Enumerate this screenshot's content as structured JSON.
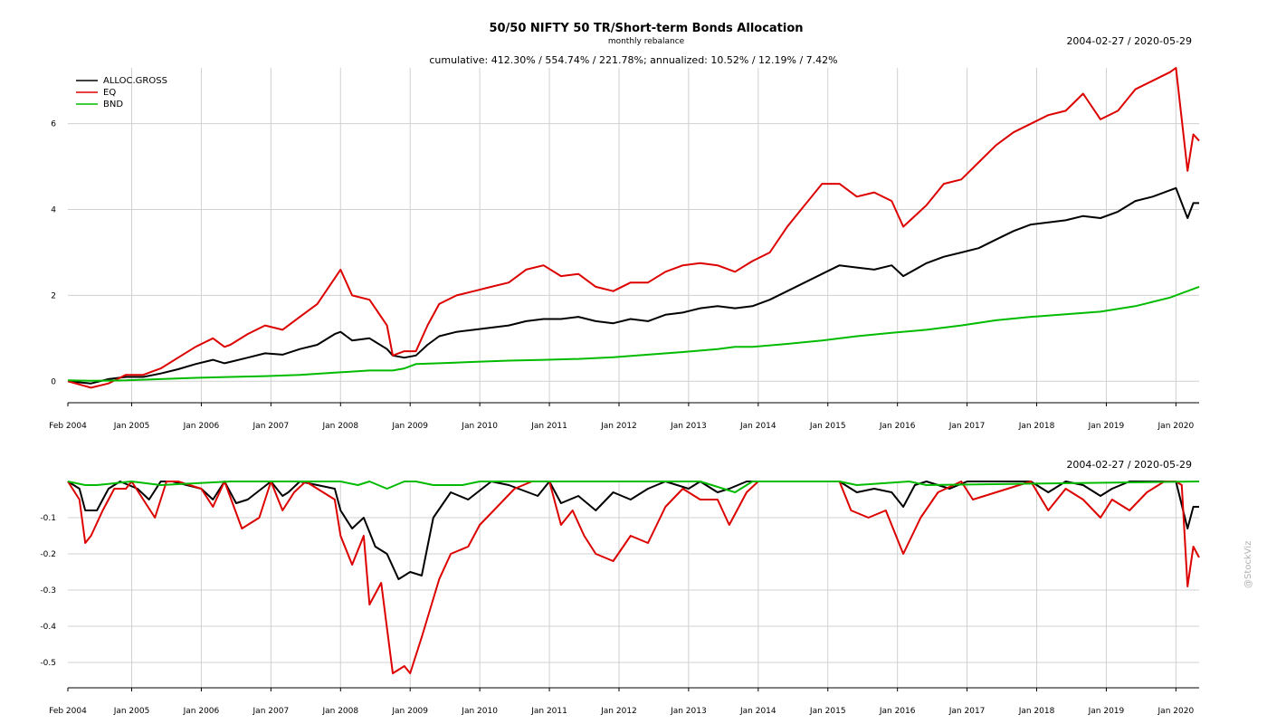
{
  "chart_data": [
    {
      "type": "line",
      "title": "50/50 NIFTY 50 TR/Short-term Bonds Allocation",
      "subtitle": "monthly rebalance",
      "stats_text": "cumulative: 412.30% / 554.74% / 221.78%; annualized: 10.52% / 12.19% / 7.42%",
      "date_range": "2004-02-27 / 2020-05-29",
      "x_tick_labels": [
        "Feb 2004",
        "Jan 2005",
        "Jan 2006",
        "Jan 2007",
        "Jan 2008",
        "Jan 2009",
        "Jan 2010",
        "Jan 2011",
        "Jan 2012",
        "Jan 2013",
        "Jan 2014",
        "Jan 2015",
        "Jan 2016",
        "Jan 2017",
        "Jan 2018",
        "Jan 2019",
        "Jan 2020"
      ],
      "y_tick_labels": [
        "0",
        "2",
        "4",
        "6"
      ],
      "ylim": [
        -0.5,
        7.3
      ],
      "grid": true,
      "legend_position": "top-left",
      "series": [
        {
          "name": "ALLOC.GROSS",
          "color": "#000000",
          "x": [
            "2004-02",
            "2004-06",
            "2004-09",
            "2004-12",
            "2005-03",
            "2005-06",
            "2005-09",
            "2005-12",
            "2006-03",
            "2006-05",
            "2006-06",
            "2006-09",
            "2006-12",
            "2007-03",
            "2007-06",
            "2007-09",
            "2007-12",
            "2008-01",
            "2008-03",
            "2008-06",
            "2008-09",
            "2008-10",
            "2008-12",
            "2009-02",
            "2009-04",
            "2009-06",
            "2009-09",
            "2009-12",
            "2010-03",
            "2010-06",
            "2010-09",
            "2010-12",
            "2011-03",
            "2011-06",
            "2011-09",
            "2011-12",
            "2012-03",
            "2012-06",
            "2012-09",
            "2012-12",
            "2013-03",
            "2013-06",
            "2013-09",
            "2013-12",
            "2014-03",
            "2014-06",
            "2014-09",
            "2014-12",
            "2015-03",
            "2015-06",
            "2015-09",
            "2015-12",
            "2016-02",
            "2016-06",
            "2016-09",
            "2016-12",
            "2017-03",
            "2017-06",
            "2017-09",
            "2017-12",
            "2018-03",
            "2018-06",
            "2018-09",
            "2018-12",
            "2019-03",
            "2019-06",
            "2019-09",
            "2019-12",
            "2020-01",
            "2020-03",
            "2020-04",
            "2020-05"
          ],
          "values": [
            0.0,
            -0.05,
            0.05,
            0.1,
            0.1,
            0.18,
            0.28,
            0.4,
            0.5,
            0.42,
            0.45,
            0.55,
            0.65,
            0.62,
            0.75,
            0.85,
            1.1,
            1.15,
            0.95,
            1.0,
            0.75,
            0.6,
            0.55,
            0.6,
            0.85,
            1.05,
            1.15,
            1.2,
            1.25,
            1.3,
            1.4,
            1.45,
            1.45,
            1.5,
            1.4,
            1.35,
            1.45,
            1.4,
            1.55,
            1.6,
            1.7,
            1.75,
            1.7,
            1.75,
            1.9,
            2.1,
            2.3,
            2.5,
            2.7,
            2.65,
            2.6,
            2.7,
            2.45,
            2.75,
            2.9,
            3.0,
            3.1,
            3.3,
            3.5,
            3.65,
            3.7,
            3.75,
            3.85,
            3.8,
            3.95,
            4.2,
            4.3,
            4.45,
            4.5,
            3.8,
            4.15,
            4.15
          ]
        },
        {
          "name": "EQ",
          "color": "#dd0000",
          "x": [
            "2004-02",
            "2004-06",
            "2004-09",
            "2004-12",
            "2005-03",
            "2005-06",
            "2005-09",
            "2005-12",
            "2006-03",
            "2006-05",
            "2006-06",
            "2006-09",
            "2006-12",
            "2007-03",
            "2007-06",
            "2007-09",
            "2007-12",
            "2008-01",
            "2008-03",
            "2008-06",
            "2008-09",
            "2008-10",
            "2008-12",
            "2009-02",
            "2009-04",
            "2009-06",
            "2009-09",
            "2009-12",
            "2010-03",
            "2010-06",
            "2010-09",
            "2010-12",
            "2011-03",
            "2011-06",
            "2011-09",
            "2011-12",
            "2012-03",
            "2012-06",
            "2012-09",
            "2012-12",
            "2013-03",
            "2013-06",
            "2013-09",
            "2013-12",
            "2014-03",
            "2014-06",
            "2014-09",
            "2014-12",
            "2015-03",
            "2015-06",
            "2015-09",
            "2015-12",
            "2016-02",
            "2016-06",
            "2016-09",
            "2016-12",
            "2017-03",
            "2017-06",
            "2017-09",
            "2017-12",
            "2018-03",
            "2018-06",
            "2018-09",
            "2018-12",
            "2019-03",
            "2019-06",
            "2019-09",
            "2019-12",
            "2020-01",
            "2020-03",
            "2020-04",
            "2020-05"
          ],
          "values": [
            0.0,
            -0.15,
            -0.05,
            0.15,
            0.15,
            0.3,
            0.55,
            0.8,
            1.0,
            0.8,
            0.85,
            1.1,
            1.3,
            1.2,
            1.5,
            1.8,
            2.4,
            2.6,
            2.0,
            1.9,
            1.3,
            0.6,
            0.7,
            0.7,
            1.3,
            1.8,
            2.0,
            2.1,
            2.2,
            2.3,
            2.6,
            2.7,
            2.45,
            2.5,
            2.2,
            2.1,
            2.3,
            2.3,
            2.55,
            2.7,
            2.75,
            2.7,
            2.55,
            2.8,
            3.0,
            3.6,
            4.1,
            4.6,
            4.6,
            4.3,
            4.4,
            4.2,
            3.6,
            4.1,
            4.6,
            4.7,
            5.1,
            5.5,
            5.8,
            6.0,
            6.2,
            6.3,
            6.7,
            6.1,
            6.3,
            6.8,
            7.0,
            7.2,
            7.3,
            4.9,
            5.75,
            5.6
          ]
        },
        {
          "name": "BND",
          "color": "#00bb00",
          "x": [
            "2004-02",
            "2004-06",
            "2004-12",
            "2005-06",
            "2005-12",
            "2006-06",
            "2006-12",
            "2007-06",
            "2007-12",
            "2008-06",
            "2008-10",
            "2008-12",
            "2009-02",
            "2009-06",
            "2009-12",
            "2010-06",
            "2010-12",
            "2011-06",
            "2011-12",
            "2012-06",
            "2012-12",
            "2013-06",
            "2013-09",
            "2013-12",
            "2014-06",
            "2014-12",
            "2015-06",
            "2015-12",
            "2016-06",
            "2016-12",
            "2017-06",
            "2017-12",
            "2018-06",
            "2018-12",
            "2019-06",
            "2019-12",
            "2020-02",
            "2020-05"
          ],
          "values": [
            0.02,
            0.01,
            0.02,
            0.05,
            0.08,
            0.1,
            0.12,
            0.15,
            0.2,
            0.25,
            0.25,
            0.3,
            0.4,
            0.42,
            0.45,
            0.48,
            0.5,
            0.52,
            0.56,
            0.62,
            0.68,
            0.75,
            0.8,
            0.8,
            0.87,
            0.95,
            1.05,
            1.13,
            1.2,
            1.3,
            1.42,
            1.5,
            1.56,
            1.62,
            1.75,
            1.95,
            2.05,
            2.2
          ]
        }
      ]
    },
    {
      "type": "line",
      "date_range": "2004-02-27 / 2020-05-29",
      "x_tick_labels": [
        "Feb 2004",
        "Jan 2005",
        "Jan 2006",
        "Jan 2007",
        "Jan 2008",
        "Jan 2009",
        "Jan 2010",
        "Jan 2011",
        "Jan 2012",
        "Jan 2013",
        "Jan 2014",
        "Jan 2015",
        "Jan 2016",
        "Jan 2017",
        "Jan 2018",
        "Jan 2019",
        "Jan 2020"
      ],
      "y_tick_labels": [
        "-0.1",
        "-0.2",
        "-0.3",
        "-0.4",
        "-0.5"
      ],
      "ylim": [
        -0.57,
        0.0
      ],
      "grid": true,
      "series": [
        {
          "name": "ALLOC.GROSS",
          "color": "#000000",
          "x": [
            "2004-02",
            "2004-04",
            "2004-05",
            "2004-07",
            "2004-09",
            "2004-11",
            "2005-02",
            "2005-04",
            "2005-06",
            "2005-08",
            "2006-01",
            "2006-03",
            "2006-05",
            "2006-07",
            "2006-09",
            "2007-01",
            "2007-03",
            "2007-04",
            "2007-06",
            "2007-12",
            "2008-01",
            "2008-03",
            "2008-05",
            "2008-07",
            "2008-09",
            "2008-11",
            "2009-01",
            "2009-03",
            "2009-05",
            "2009-08",
            "2009-11",
            "2010-03",
            "2010-06",
            "2010-11",
            "2011-01",
            "2011-03",
            "2011-06",
            "2011-09",
            "2011-12",
            "2012-03",
            "2012-06",
            "2012-09",
            "2013-01",
            "2013-03",
            "2013-06",
            "2013-08",
            "2013-11",
            "2014-01",
            "2015-03",
            "2015-06",
            "2015-09",
            "2015-12",
            "2016-02",
            "2016-04",
            "2016-06",
            "2016-10",
            "2017-01",
            "2017-12",
            "2018-03",
            "2018-06",
            "2018-09",
            "2018-12",
            "2019-02",
            "2019-05",
            "2019-09",
            "2019-11",
            "2020-01",
            "2020-03",
            "2020-04",
            "2020-05"
          ],
          "values": [
            0.0,
            -0.02,
            -0.08,
            -0.08,
            -0.02,
            0.0,
            -0.02,
            -0.05,
            0.0,
            0.0,
            -0.02,
            -0.05,
            0.0,
            -0.06,
            -0.05,
            0.0,
            -0.04,
            -0.03,
            0.0,
            -0.02,
            -0.08,
            -0.13,
            -0.1,
            -0.18,
            -0.2,
            -0.27,
            -0.25,
            -0.26,
            -0.1,
            -0.03,
            -0.05,
            0.0,
            -0.01,
            -0.04,
            0.0,
            -0.06,
            -0.04,
            -0.08,
            -0.03,
            -0.05,
            -0.02,
            0.0,
            -0.02,
            0.0,
            -0.03,
            -0.02,
            0.0,
            0.0,
            0.0,
            -0.03,
            -0.02,
            -0.03,
            -0.07,
            -0.01,
            0.0,
            -0.02,
            0.0,
            0.0,
            -0.03,
            0.0,
            -0.01,
            -0.04,
            -0.02,
            0.0,
            0.0,
            0.0,
            0.0,
            -0.13,
            -0.07,
            -0.07
          ]
        },
        {
          "name": "EQ",
          "color": "#dd0000",
          "x": [
            "2004-02",
            "2004-04",
            "2004-05",
            "2004-06",
            "2004-08",
            "2004-10",
            "2004-12",
            "2005-01",
            "2005-03",
            "2005-05",
            "2005-07",
            "2005-09",
            "2006-01",
            "2006-03",
            "2006-05",
            "2006-08",
            "2006-11",
            "2007-01",
            "2007-03",
            "2007-05",
            "2007-07",
            "2007-12",
            "2008-01",
            "2008-03",
            "2008-05",
            "2008-06",
            "2008-08",
            "2008-10",
            "2008-12",
            "2009-01",
            "2009-03",
            "2009-06",
            "2009-08",
            "2009-11",
            "2010-01",
            "2010-04",
            "2010-07",
            "2010-10",
            "2011-01",
            "2011-03",
            "2011-05",
            "2011-07",
            "2011-09",
            "2011-12",
            "2012-03",
            "2012-06",
            "2012-09",
            "2012-12",
            "2013-03",
            "2013-06",
            "2013-08",
            "2013-11",
            "2014-01",
            "2015-03",
            "2015-05",
            "2015-08",
            "2015-11",
            "2016-02",
            "2016-05",
            "2016-08",
            "2016-12",
            "2017-02",
            "2017-12",
            "2018-03",
            "2018-06",
            "2018-09",
            "2018-12",
            "2019-02",
            "2019-05",
            "2019-08",
            "2019-11",
            "2020-01",
            "2020-02",
            "2020-03",
            "2020-04",
            "2020-05"
          ],
          "values": [
            0.0,
            -0.05,
            -0.17,
            -0.15,
            -0.08,
            -0.02,
            -0.02,
            0.0,
            -0.05,
            -0.1,
            0.0,
            0.0,
            -0.02,
            -0.07,
            0.0,
            -0.13,
            -0.1,
            0.0,
            -0.08,
            -0.03,
            0.0,
            -0.05,
            -0.15,
            -0.23,
            -0.15,
            -0.34,
            -0.28,
            -0.53,
            -0.51,
            -0.53,
            -0.43,
            -0.27,
            -0.2,
            -0.18,
            -0.12,
            -0.07,
            -0.02,
            0.0,
            0.0,
            -0.12,
            -0.08,
            -0.15,
            -0.2,
            -0.22,
            -0.15,
            -0.17,
            -0.07,
            -0.02,
            -0.05,
            -0.05,
            -0.12,
            -0.03,
            0.0,
            0.0,
            -0.08,
            -0.1,
            -0.08,
            -0.2,
            -0.1,
            -0.03,
            0.0,
            -0.05,
            0.0,
            -0.08,
            -0.02,
            -0.05,
            -0.1,
            -0.05,
            -0.08,
            -0.03,
            0.0,
            0.0,
            -0.01,
            -0.29,
            -0.18,
            -0.21
          ]
        },
        {
          "name": "BND",
          "color": "#00bb00",
          "x": [
            "2004-02",
            "2004-05",
            "2004-07",
            "2005-01",
            "2005-06",
            "2006-06",
            "2008-01",
            "2008-04",
            "2008-06",
            "2008-09",
            "2008-12",
            "2009-02",
            "2009-05",
            "2009-10",
            "2010-01",
            "2013-03",
            "2013-07",
            "2013-09",
            "2013-12",
            "2015-03",
            "2015-06",
            "2016-03",
            "2016-06",
            "2020-05"
          ],
          "values": [
            0.0,
            -0.01,
            -0.01,
            0.0,
            -0.01,
            0.0,
            0.0,
            -0.01,
            0.0,
            -0.02,
            0.0,
            0.0,
            -0.01,
            -0.01,
            0.0,
            0.0,
            -0.02,
            -0.03,
            0.0,
            0.0,
            -0.01,
            0.0,
            -0.01,
            0.0
          ]
        }
      ]
    }
  ],
  "watermark": "@StockViz"
}
